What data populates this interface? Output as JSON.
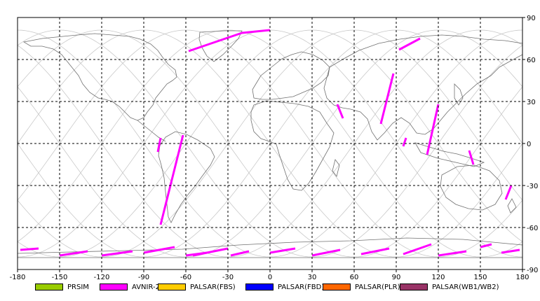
{
  "map": {
    "lon_range": [
      -180,
      180
    ],
    "lat_range": [
      -90,
      90
    ],
    "lon_ticks": [
      -180,
      -150,
      -120,
      -90,
      -60,
      -30,
      0,
      30,
      60,
      90,
      120,
      150,
      180
    ],
    "lat_ticks": [
      90,
      60,
      30,
      0,
      -30,
      -60,
      -90
    ],
    "lon_tick_labels": [
      "-180",
      "-150",
      "-120",
      "-90",
      "-60",
      "-30",
      "0",
      "30",
      "60",
      "90",
      "120",
      "150",
      "180"
    ],
    "lat_tick_labels": [
      "90",
      "60",
      "30",
      "0",
      "-30",
      "-60",
      "-90"
    ],
    "grid": "dashed",
    "coast_color": "#707070",
    "orbit_color": "#c8c8c8",
    "acquisition_color": "#ff00ff"
  },
  "legend": [
    {
      "label": "PRSIM",
      "color": "#99cc00"
    },
    {
      "label": "AVNIR-2",
      "color": "#ff00ff"
    },
    {
      "label": "PALSAR(FBS)",
      "color": "#ffcc00"
    },
    {
      "label": "PALSAR(FBD)",
      "color": "#0000ff"
    },
    {
      "label": "PALSAR(PLR)",
      "color": "#ff6600"
    },
    {
      "label": "PALSAR(WB1/WB2)",
      "color": "#993366"
    }
  ]
}
